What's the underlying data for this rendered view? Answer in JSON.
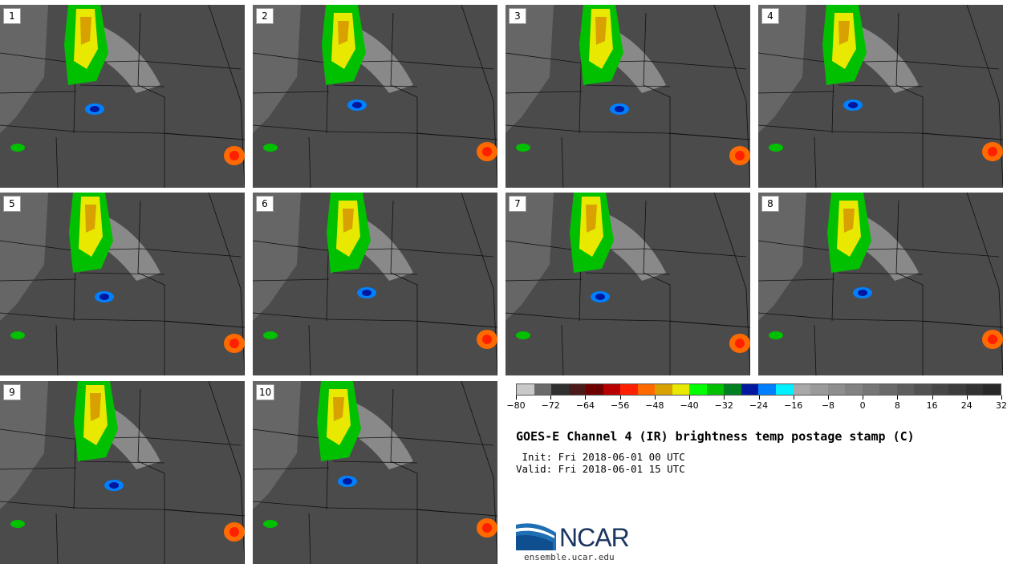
{
  "panels": [
    {
      "label": "1"
    },
    {
      "label": "2"
    },
    {
      "label": "3"
    },
    {
      "label": "4"
    },
    {
      "label": "5"
    },
    {
      "label": "6"
    },
    {
      "label": "7"
    },
    {
      "label": "8"
    },
    {
      "label": "9"
    },
    {
      "label": "10"
    }
  ],
  "colorbar": {
    "colors": [
      "#c8c8c8",
      "#6a6a6a",
      "#303030",
      "#4d1a1a",
      "#6e0000",
      "#b80000",
      "#ff2000",
      "#ff6a00",
      "#d8a000",
      "#e8e800",
      "#00ff00",
      "#00c000",
      "#008020",
      "#0018a0",
      "#0080ff",
      "#00f0ff",
      "#a8a8a8",
      "#9a9a9a",
      "#8e8e8e",
      "#828282",
      "#767676",
      "#6a6a6a",
      "#5e5e5e",
      "#525252",
      "#464646",
      "#3c3c3c",
      "#323232",
      "#282828"
    ],
    "tick_labels": [
      "−80",
      "−72",
      "−64",
      "−56",
      "−48",
      "−40",
      "−32",
      "−24",
      "−16",
      "−8",
      "0",
      "8",
      "16",
      "24",
      "32"
    ]
  },
  "title": "GOES-E Channel 4 (IR) brightness temp postage stamp (C)",
  "init_line": " Init: Fri 2018-06-01 00 UTC",
  "valid_line": "Valid: Fri 2018-06-01 15 UTC",
  "logo": {
    "text": "NCAR",
    "url": "ensemble.ucar.edu"
  }
}
